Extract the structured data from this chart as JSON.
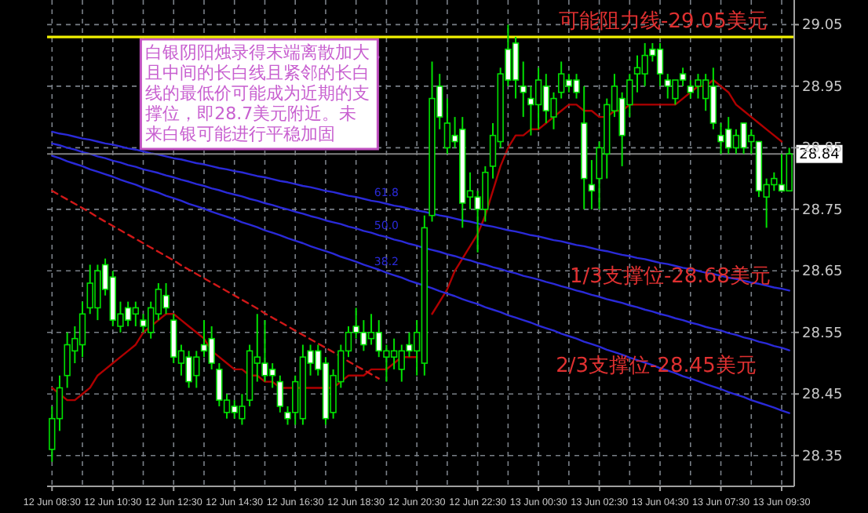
{
  "chart_data": {
    "type": "candlestick",
    "categories": [
      "12 Jun 08:30",
      null,
      null,
      null,
      null,
      null,
      null,
      null,
      "12 Jun 10:30",
      null,
      null,
      null,
      null,
      null,
      null,
      null,
      "12 Jun 12:30",
      null,
      null,
      null,
      null,
      null,
      null,
      null,
      "12 Jun 14:30",
      null,
      null,
      null,
      null,
      null,
      null,
      null,
      "12 Jun 16:30",
      null,
      null,
      null,
      null,
      null,
      null,
      null,
      "12 Jun 18:30",
      null,
      null,
      null,
      null,
      null,
      null,
      null,
      "12 Jun 20:30",
      null,
      null,
      null,
      null,
      null,
      null,
      null,
      "12 Jun 22:30",
      null,
      null,
      null,
      null,
      null,
      null,
      null,
      "13 Jun 00:30",
      null,
      null,
      null,
      null,
      null,
      null,
      null,
      "13 Jun 02:30",
      null,
      null,
      null,
      null,
      null,
      null,
      null,
      "13 Jun 04:30",
      null,
      null,
      null,
      null,
      null,
      null,
      null,
      "13 Jun 07:30",
      null,
      null,
      null,
      null,
      null,
      null,
      null,
      "13 Jun 09:30",
      null
    ],
    "ohlc": [
      [
        28.36,
        28.43,
        28.34,
        28.41
      ],
      [
        28.41,
        28.48,
        28.39,
        28.46
      ],
      [
        28.48,
        28.55,
        28.46,
        28.53
      ],
      [
        28.52,
        28.56,
        28.5,
        28.54
      ],
      [
        28.53,
        28.6,
        28.51,
        28.58
      ],
      [
        28.59,
        28.66,
        28.58,
        28.63
      ],
      [
        28.59,
        28.66,
        28.57,
        28.65
      ],
      [
        28.66,
        28.67,
        28.61,
        28.62
      ],
      [
        28.64,
        28.65,
        28.56,
        28.57
      ],
      [
        28.56,
        28.6,
        28.55,
        28.58
      ],
      [
        28.59,
        28.6,
        28.56,
        28.57
      ],
      [
        28.58,
        28.6,
        28.56,
        28.59
      ],
      [
        28.57,
        28.58,
        28.55,
        28.56
      ],
      [
        28.55,
        28.6,
        28.54,
        28.59
      ],
      [
        28.58,
        28.63,
        28.57,
        28.62
      ],
      [
        28.61,
        28.63,
        28.58,
        28.59
      ],
      [
        28.57,
        28.58,
        28.5,
        28.51
      ],
      [
        28.5,
        28.53,
        28.48,
        28.52
      ],
      [
        28.51,
        28.52,
        28.46,
        28.47
      ],
      [
        28.48,
        28.52,
        28.46,
        28.51
      ],
      [
        28.53,
        28.57,
        28.51,
        28.52
      ],
      [
        28.54,
        28.56,
        28.49,
        28.5
      ],
      [
        28.49,
        28.5,
        28.43,
        28.44
      ],
      [
        28.42,
        28.45,
        28.41,
        28.44
      ],
      [
        28.43,
        28.44,
        28.41,
        28.42
      ],
      [
        28.41,
        28.45,
        28.4,
        28.43
      ],
      [
        28.44,
        28.53,
        28.43,
        28.52
      ],
      [
        28.5,
        28.58,
        28.47,
        28.51
      ],
      [
        28.5,
        28.57,
        28.47,
        28.48
      ],
      [
        28.49,
        28.5,
        28.46,
        28.48
      ],
      [
        28.47,
        28.48,
        28.42,
        28.43
      ],
      [
        28.42,
        28.43,
        28.4,
        28.41
      ],
      [
        28.42,
        28.48,
        28.4,
        28.47
      ],
      [
        28.41,
        28.53,
        28.4,
        28.51
      ],
      [
        28.52,
        28.53,
        28.48,
        28.5
      ],
      [
        28.52,
        28.53,
        28.48,
        28.49
      ],
      [
        28.5,
        28.51,
        28.4,
        28.41
      ],
      [
        28.42,
        28.49,
        28.41,
        28.48
      ],
      [
        28.47,
        28.53,
        28.46,
        28.52
      ],
      [
        28.52,
        28.56,
        28.51,
        28.55
      ],
      [
        28.56,
        28.59,
        28.54,
        28.55
      ],
      [
        28.55,
        28.57,
        28.52,
        28.53
      ],
      [
        28.54,
        28.58,
        28.53,
        28.55
      ],
      [
        28.55,
        28.57,
        28.51,
        28.52
      ],
      [
        28.51,
        28.53,
        28.47,
        28.52
      ],
      [
        28.51,
        28.54,
        28.49,
        28.52
      ],
      [
        28.49,
        28.53,
        28.47,
        28.52
      ],
      [
        28.53,
        28.55,
        28.51,
        28.52
      ],
      [
        28.52,
        28.57,
        28.48,
        28.55
      ],
      [
        28.5,
        28.74,
        28.48,
        28.72
      ],
      [
        28.74,
        28.99,
        28.73,
        28.93
      ],
      [
        28.95,
        28.97,
        28.88,
        28.9
      ],
      [
        28.85,
        28.93,
        28.84,
        28.89
      ],
      [
        28.87,
        28.9,
        28.85,
        28.86
      ],
      [
        28.88,
        28.9,
        28.72,
        28.76
      ],
      [
        28.77,
        28.81,
        28.75,
        28.78
      ],
      [
        28.77,
        28.78,
        28.68,
        28.75
      ],
      [
        28.75,
        28.82,
        28.73,
        28.81
      ],
      [
        28.82,
        28.89,
        28.8,
        28.87
      ],
      [
        28.86,
        28.98,
        28.85,
        28.97
      ],
      [
        29.01,
        29.05,
        28.95,
        28.96
      ],
      [
        29.02,
        29.03,
        28.93,
        28.96
      ],
      [
        28.95,
        28.99,
        28.9,
        28.94
      ],
      [
        28.93,
        28.95,
        28.87,
        28.92
      ],
      [
        28.92,
        28.98,
        28.88,
        28.96
      ],
      [
        28.95,
        28.97,
        28.89,
        28.91
      ],
      [
        28.9,
        28.94,
        28.88,
        28.93
      ],
      [
        28.94,
        28.99,
        28.93,
        28.97
      ],
      [
        28.96,
        28.97,
        28.94,
        28.95
      ],
      [
        28.96,
        28.97,
        28.93,
        28.94
      ],
      [
        28.89,
        28.95,
        28.75,
        28.8
      ],
      [
        28.79,
        28.83,
        28.75,
        28.78
      ],
      [
        28.8,
        28.86,
        28.75,
        28.85
      ],
      [
        28.84,
        28.93,
        28.8,
        28.92
      ],
      [
        28.91,
        28.97,
        28.9,
        28.95
      ],
      [
        28.93,
        28.94,
        28.82,
        28.87
      ],
      [
        28.92,
        28.97,
        28.9,
        28.96
      ],
      [
        28.97,
        29.0,
        28.94,
        28.98
      ],
      [
        28.97,
        29.02,
        28.95,
        29.0
      ],
      [
        29.01,
        29.02,
        28.99,
        29.0
      ],
      [
        29.01,
        29.02,
        28.95,
        28.97
      ],
      [
        28.96,
        28.97,
        28.93,
        28.95
      ],
      [
        28.93,
        28.96,
        28.92,
        28.96
      ],
      [
        28.97,
        28.98,
        28.95,
        28.96
      ],
      [
        28.95,
        28.96,
        28.93,
        28.94
      ],
      [
        28.95,
        28.97,
        28.93,
        28.96
      ],
      [
        28.93,
        28.97,
        28.91,
        28.96
      ],
      [
        28.95,
        28.98,
        28.88,
        28.89
      ],
      [
        28.87,
        28.89,
        28.84,
        28.86
      ],
      [
        28.88,
        28.9,
        28.84,
        28.85
      ],
      [
        28.85,
        28.88,
        28.84,
        28.87
      ],
      [
        28.89,
        28.89,
        28.84,
        28.85
      ],
      [
        28.86,
        28.88,
        28.84,
        28.87
      ],
      [
        28.86,
        28.86,
        28.77,
        28.78
      ],
      [
        28.77,
        28.8,
        28.72,
        28.79
      ],
      [
        28.79,
        28.81,
        28.78,
        28.8
      ],
      [
        28.79,
        28.84,
        28.78,
        28.78
      ],
      [
        28.78,
        28.85,
        28.78,
        28.84
      ]
    ],
    "series": [
      {
        "type": "line",
        "color": "#b00000",
        "values": [
          28.46,
          28.45,
          28.44,
          28.44,
          28.45,
          28.46,
          28.48,
          28.49,
          28.5,
          28.51,
          28.52,
          28.53,
          28.55,
          28.56,
          28.57,
          28.58,
          28.58,
          28.57,
          28.56,
          28.55,
          28.54,
          28.52,
          28.51,
          28.5,
          28.49,
          28.49,
          28.48,
          28.48,
          28.47,
          28.47,
          28.46,
          28.46,
          28.46,
          28.46,
          28.46,
          28.46,
          28.46,
          28.46,
          28.47,
          28.48,
          28.48,
          28.48,
          28.49,
          28.49,
          28.49,
          28.5,
          28.51,
          28.51,
          28.51,
          null,
          28.58,
          28.6,
          28.62,
          28.65,
          28.67,
          28.69,
          28.71,
          28.74,
          28.78,
          28.82,
          28.85,
          28.87,
          28.87,
          28.88,
          28.88,
          28.89,
          28.9,
          28.91,
          28.92,
          28.92,
          28.91,
          28.91,
          28.9,
          28.9,
          28.91,
          28.91,
          28.92,
          28.92,
          28.92,
          28.92,
          28.92,
          28.92,
          28.92,
          28.93,
          28.94,
          28.95,
          28.95,
          28.96,
          28.95,
          28.94,
          28.92,
          28.91,
          28.9,
          28.89,
          28.88,
          28.87,
          28.86,
          null
        ]
      },
      {
        "type": "line",
        "color": "#d01818",
        "line_style": "dashed",
        "values": [
          28.78,
          28.773,
          28.766,
          28.759,
          28.752,
          28.745,
          28.737,
          28.73,
          28.723,
          28.716,
          28.709,
          28.702,
          28.695,
          28.688,
          28.681,
          28.674,
          28.667,
          28.659,
          28.652,
          28.645,
          28.638,
          28.631,
          28.624,
          28.617,
          28.61,
          28.603,
          28.596,
          28.589,
          28.581,
          28.574,
          28.567,
          28.56,
          28.553,
          28.546,
          28.539,
          28.532,
          28.525,
          28.518,
          28.511,
          28.503,
          28.496,
          28.489,
          28.482,
          28.475,
          null,
          null,
          null,
          null,
          null,
          null,
          null,
          null,
          null,
          null,
          null,
          null,
          null,
          null,
          null,
          null,
          null,
          null,
          null,
          null,
          null,
          null,
          null,
          null,
          null,
          null,
          null,
          null,
          null,
          null,
          null,
          null,
          null,
          null,
          null,
          null,
          null,
          null,
          null,
          null,
          null,
          null,
          null,
          null,
          null,
          null,
          null,
          null,
          null,
          null,
          null,
          null,
          null,
          null
        ]
      },
      {
        "type": "line",
        "name": "61.8",
        "color": "#2a2ad8",
        "values": [
          28.876,
          28.873,
          28.871,
          28.868,
          28.865,
          28.863,
          28.86,
          28.857,
          28.855,
          28.852,
          28.849,
          28.847,
          28.844,
          28.841,
          28.839,
          28.836,
          28.833,
          28.831,
          28.828,
          28.825,
          28.823,
          28.82,
          28.817,
          28.815,
          28.812,
          28.81,
          28.807,
          28.804,
          28.802,
          28.799,
          28.796,
          28.794,
          28.791,
          28.788,
          28.786,
          28.783,
          28.78,
          28.778,
          28.775,
          28.772,
          28.77,
          28.767,
          28.764,
          28.762,
          28.759,
          28.756,
          28.754,
          28.751,
          28.748,
          28.746,
          28.743,
          28.74,
          28.738,
          28.735,
          28.732,
          28.73,
          28.727,
          28.724,
          28.722,
          28.719,
          28.716,
          28.714,
          28.711,
          28.708,
          28.706,
          28.703,
          28.7,
          28.698,
          28.695,
          28.692,
          28.69,
          28.687,
          28.684,
          28.682,
          28.679,
          28.676,
          28.674,
          28.671,
          28.669,
          28.666,
          28.663,
          28.661,
          28.658,
          28.655,
          28.653,
          28.65,
          28.647,
          28.645,
          28.642,
          28.639,
          28.637,
          28.634,
          28.631,
          28.629,
          28.626,
          28.623,
          28.621,
          28.618
        ]
      },
      {
        "type": "line",
        "name": "50.0",
        "color": "#2a2ad8",
        "values": [
          28.857,
          28.854,
          28.85,
          28.847,
          28.843,
          28.84,
          28.836,
          28.833,
          28.829,
          28.826,
          28.822,
          28.819,
          28.815,
          28.812,
          28.809,
          28.805,
          28.802,
          28.798,
          28.795,
          28.791,
          28.788,
          28.784,
          28.781,
          28.777,
          28.774,
          28.771,
          28.767,
          28.764,
          28.76,
          28.757,
          28.753,
          28.75,
          28.746,
          28.743,
          28.739,
          28.736,
          28.732,
          28.729,
          28.726,
          28.722,
          28.719,
          28.715,
          28.712,
          28.708,
          28.705,
          28.701,
          28.698,
          28.694,
          28.691,
          28.687,
          28.684,
          28.681,
          28.677,
          28.674,
          28.67,
          28.667,
          28.663,
          28.66,
          28.656,
          28.653,
          28.649,
          28.646,
          28.642,
          28.639,
          28.636,
          28.632,
          28.629,
          28.625,
          28.622,
          28.618,
          28.615,
          28.611,
          28.608,
          28.604,
          28.601,
          28.598,
          28.594,
          28.591,
          28.587,
          28.584,
          28.58,
          28.577,
          28.573,
          28.57,
          28.566,
          28.563,
          28.559,
          28.556,
          28.553,
          28.549,
          28.546,
          28.542,
          28.539,
          28.535,
          28.532,
          28.528,
          28.525,
          28.521
        ]
      },
      {
        "type": "line",
        "name": "38.2",
        "color": "#2a2ad8",
        "values": [
          28.837,
          28.833,
          28.828,
          28.824,
          28.82,
          28.815,
          28.811,
          28.807,
          28.803,
          28.798,
          28.794,
          28.79,
          28.785,
          28.781,
          28.777,
          28.772,
          28.768,
          28.764,
          28.759,
          28.755,
          28.751,
          28.746,
          28.742,
          28.738,
          28.734,
          28.729,
          28.725,
          28.721,
          28.716,
          28.712,
          28.708,
          28.703,
          28.699,
          28.695,
          28.69,
          28.686,
          28.682,
          28.678,
          28.673,
          28.669,
          28.665,
          28.66,
          28.656,
          28.652,
          28.647,
          28.643,
          28.639,
          28.634,
          28.63,
          28.626,
          28.622,
          28.617,
          28.613,
          28.609,
          28.604,
          28.6,
          28.596,
          28.591,
          28.587,
          28.583,
          28.578,
          28.574,
          28.57,
          28.566,
          28.561,
          28.557,
          28.553,
          28.548,
          28.544,
          28.54,
          28.535,
          28.531,
          28.527,
          28.522,
          28.518,
          28.514,
          28.509,
          28.505,
          28.501,
          28.497,
          28.492,
          28.488,
          28.484,
          28.479,
          28.475,
          28.471,
          28.466,
          28.462,
          28.458,
          28.453,
          28.449,
          28.445,
          28.44,
          28.436,
          28.432,
          28.428,
          28.423,
          28.419
        ]
      }
    ],
    "ylim": [
      28.3,
      29.09
    ],
    "yticks": [
      28.35,
      28.45,
      28.55,
      28.65,
      28.75,
      28.85,
      28.95,
      29.05
    ],
    "grid": true,
    "ref_lines": [
      {
        "axis": "y",
        "value": 29.03,
        "label": "可能阻力线-29.05美元",
        "color": "#f0f000"
      },
      {
        "axis": "y",
        "value": 28.84,
        "label": "28.84",
        "color": "#808080"
      }
    ],
    "annotations": [
      "白银阴阳烛录得末端离散加大，且中间的长白线且紧邻的长白线的最低价可能成为近期的支撑位，即28.7美元附近。未来白银可能进行平稳加固",
      "1/3支撑位-28.68美元",
      "2/3支撑位-28.45美元"
    ]
  }
}
